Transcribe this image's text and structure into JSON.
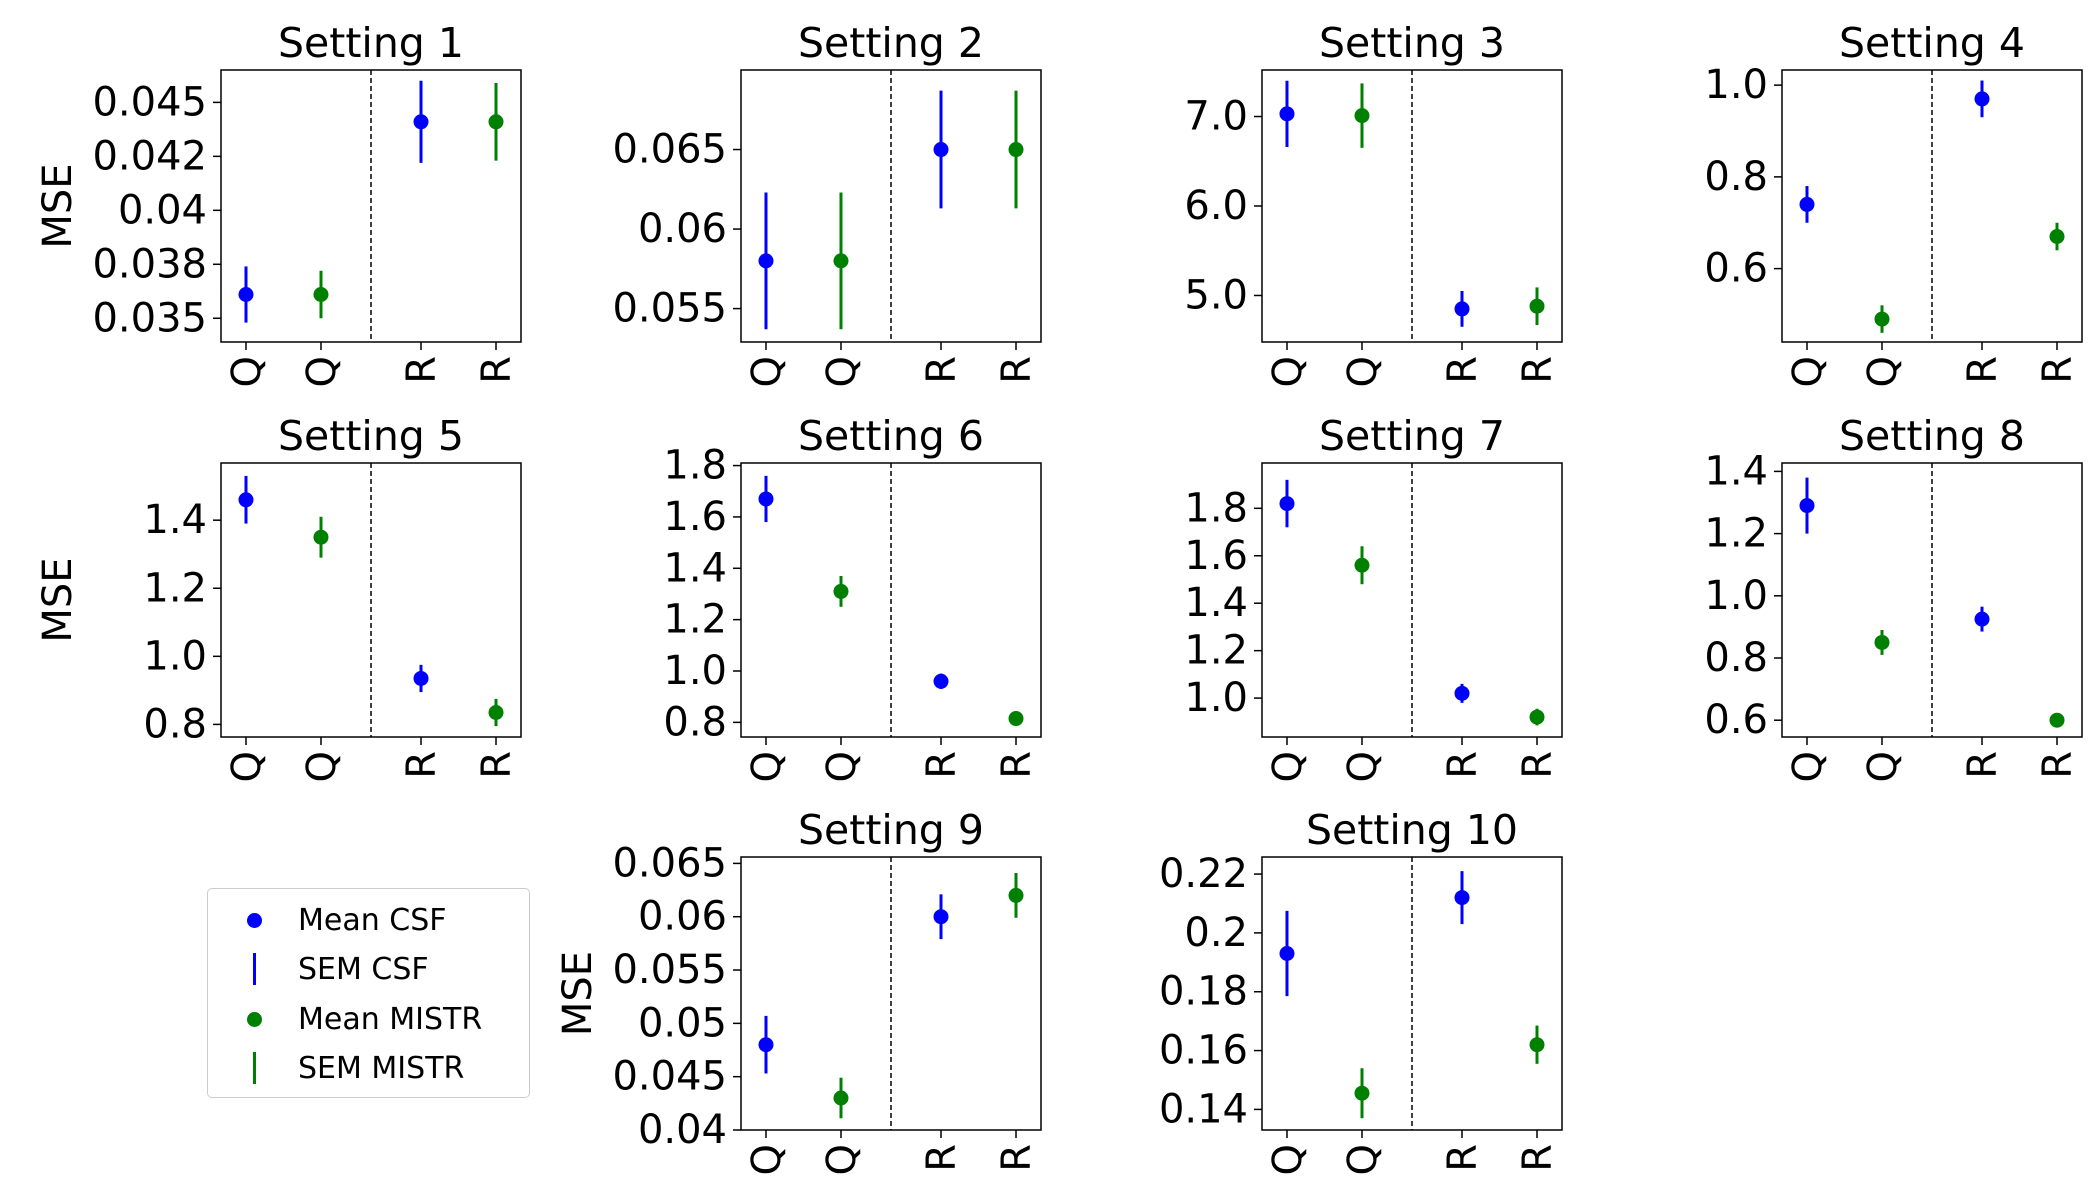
{
  "colors": {
    "csf": "#0000ff",
    "mistr": "#008000"
  },
  "legend": {
    "mean_csf": "Mean CSF",
    "sem_csf": "SEM CSF",
    "mean_mistr": "Mean MISTR",
    "sem_mistr": "SEM MISTR"
  },
  "chart_data": [
    {
      "type": "scatter",
      "title": "Setting 1",
      "ylabel": "MSE",
      "categories": [
        "Q",
        "Q",
        "R",
        "R"
      ],
      "ylim": [
        0.0339,
        0.0465
      ],
      "yticks": [
        0.035,
        0.0375,
        0.04,
        0.0425,
        0.045
      ],
      "yticklabels": [
        "0.035",
        "0.038",
        "0.04",
        "0.042",
        "0.045"
      ],
      "points": [
        {
          "series": "CSF",
          "category_index": 0,
          "mean": 0.0361,
          "sem": 0.0013
        },
        {
          "series": "MISTR",
          "category_index": 1,
          "mean": 0.0361,
          "sem": 0.0011
        },
        {
          "series": "CSF",
          "category_index": 2,
          "mean": 0.0441,
          "sem": 0.0019
        },
        {
          "series": "MISTR",
          "category_index": 3,
          "mean": 0.0441,
          "sem": 0.0018
        }
      ]
    },
    {
      "type": "scatter",
      "title": "Setting 2",
      "ylabel": "",
      "categories": [
        "Q",
        "Q",
        "R",
        "R"
      ],
      "ylim": [
        0.0529,
        0.07
      ],
      "yticks": [
        0.055,
        0.06,
        0.065
      ],
      "yticklabels": [
        "0.055",
        "0.06",
        "0.065"
      ],
      "points": [
        {
          "series": "CSF",
          "category_index": 0,
          "mean": 0.058,
          "sem": 0.0043
        },
        {
          "series": "MISTR",
          "category_index": 1,
          "mean": 0.058,
          "sem": 0.0043
        },
        {
          "series": "CSF",
          "category_index": 2,
          "mean": 0.065,
          "sem": 0.0037
        },
        {
          "series": "MISTR",
          "category_index": 3,
          "mean": 0.065,
          "sem": 0.0037
        }
      ]
    },
    {
      "type": "scatter",
      "title": "Setting 3",
      "ylabel": "",
      "categories": [
        "Q",
        "Q",
        "R",
        "R"
      ],
      "ylim": [
        4.48,
        7.52
      ],
      "yticks": [
        5.0,
        6.0,
        7.0
      ],
      "yticklabels": [
        "5.0",
        "6.0",
        "7.0"
      ],
      "points": [
        {
          "series": "CSF",
          "category_index": 0,
          "mean": 7.03,
          "sem": 0.37
        },
        {
          "series": "MISTR",
          "category_index": 1,
          "mean": 7.01,
          "sem": 0.36
        },
        {
          "series": "CSF",
          "category_index": 2,
          "mean": 4.85,
          "sem": 0.2
        },
        {
          "series": "MISTR",
          "category_index": 3,
          "mean": 4.88,
          "sem": 0.21
        }
      ]
    },
    {
      "type": "scatter",
      "title": "Setting 4",
      "ylabel": "",
      "categories": [
        "Q",
        "Q",
        "R",
        "R"
      ],
      "ylim": [
        0.44,
        1.033
      ],
      "yticks": [
        0.6,
        0.8,
        1.0
      ],
      "yticklabels": [
        "0.6",
        "0.8",
        "1.0"
      ],
      "points": [
        {
          "series": "CSF",
          "category_index": 0,
          "mean": 0.74,
          "sem": 0.04
        },
        {
          "series": "MISTR",
          "category_index": 1,
          "mean": 0.49,
          "sem": 0.03
        },
        {
          "series": "CSF",
          "category_index": 2,
          "mean": 0.97,
          "sem": 0.04
        },
        {
          "series": "MISTR",
          "category_index": 3,
          "mean": 0.67,
          "sem": 0.03
        }
      ]
    },
    {
      "type": "scatter",
      "title": "Setting 5",
      "ylabel": "MSE",
      "categories": [
        "Q",
        "Q",
        "R",
        "R"
      ],
      "ylim": [
        0.763,
        1.568
      ],
      "yticks": [
        0.8,
        1.0,
        1.2,
        1.4
      ],
      "yticklabels": [
        "0.8",
        "1.0",
        "1.2",
        "1.4"
      ],
      "points": [
        {
          "series": "CSF",
          "category_index": 0,
          "mean": 1.46,
          "sem": 0.07
        },
        {
          "series": "MISTR",
          "category_index": 1,
          "mean": 1.35,
          "sem": 0.06
        },
        {
          "series": "CSF",
          "category_index": 2,
          "mean": 0.935,
          "sem": 0.04
        },
        {
          "series": "MISTR",
          "category_index": 3,
          "mean": 0.835,
          "sem": 0.04
        }
      ]
    },
    {
      "type": "scatter",
      "title": "Setting 6",
      "ylabel": "",
      "categories": [
        "Q",
        "Q",
        "R",
        "R"
      ],
      "ylim": [
        0.743,
        1.81
      ],
      "yticks": [
        0.8,
        1.0,
        1.2,
        1.4,
        1.6,
        1.8
      ],
      "yticklabels": [
        "0.8",
        "1.0",
        "1.2",
        "1.4",
        "1.6",
        "1.8"
      ],
      "points": [
        {
          "series": "CSF",
          "category_index": 0,
          "mean": 1.67,
          "sem": 0.09
        },
        {
          "series": "MISTR",
          "category_index": 1,
          "mean": 1.31,
          "sem": 0.06
        },
        {
          "series": "CSF",
          "category_index": 2,
          "mean": 0.96,
          "sem": 0.03
        },
        {
          "series": "MISTR",
          "category_index": 3,
          "mean": 0.815,
          "sem": 0.025
        }
      ]
    },
    {
      "type": "scatter",
      "title": "Setting 7",
      "ylabel": "",
      "categories": [
        "Q",
        "Q",
        "R",
        "R"
      ],
      "ylim": [
        0.836,
        1.991
      ],
      "yticks": [
        1.0,
        1.2,
        1.4,
        1.6,
        1.8
      ],
      "yticklabels": [
        "1.0",
        "1.2",
        "1.4",
        "1.6",
        "1.8"
      ],
      "points": [
        {
          "series": "CSF",
          "category_index": 0,
          "mean": 1.82,
          "sem": 0.1
        },
        {
          "series": "MISTR",
          "category_index": 1,
          "mean": 1.56,
          "sem": 0.08
        },
        {
          "series": "CSF",
          "category_index": 2,
          "mean": 1.02,
          "sem": 0.04
        },
        {
          "series": "MISTR",
          "category_index": 3,
          "mean": 0.92,
          "sem": 0.035
        }
      ]
    },
    {
      "type": "scatter",
      "title": "Setting 8",
      "ylabel": "",
      "categories": [
        "Q",
        "Q",
        "R",
        "R"
      ],
      "ylim": [
        0.546,
        1.427
      ],
      "yticks": [
        0.6,
        0.8,
        1.0,
        1.2,
        1.4
      ],
      "yticklabels": [
        "0.6",
        "0.8",
        "1.0",
        "1.2",
        "1.4"
      ],
      "points": [
        {
          "series": "CSF",
          "category_index": 0,
          "mean": 1.29,
          "sem": 0.09
        },
        {
          "series": "MISTR",
          "category_index": 1,
          "mean": 0.85,
          "sem": 0.04
        },
        {
          "series": "CSF",
          "category_index": 2,
          "mean": 0.925,
          "sem": 0.04
        },
        {
          "series": "MISTR",
          "category_index": 3,
          "mean": 0.6,
          "sem": 0.015
        }
      ]
    },
    {
      "type": "scatter",
      "title": "Setting 9",
      "ylabel": "MSE",
      "categories": [
        "Q",
        "Q",
        "R",
        "R"
      ],
      "ylim": [
        0.04,
        0.0656
      ],
      "yticks": [
        0.04,
        0.045,
        0.05,
        0.055,
        0.06,
        0.065
      ],
      "yticklabels": [
        "0.04",
        "0.045",
        "0.05",
        "0.055",
        "0.06",
        "0.065"
      ],
      "points": [
        {
          "series": "CSF",
          "category_index": 0,
          "mean": 0.048,
          "sem": 0.0027
        },
        {
          "series": "MISTR",
          "category_index": 1,
          "mean": 0.043,
          "sem": 0.0019
        },
        {
          "series": "CSF",
          "category_index": 2,
          "mean": 0.06,
          "sem": 0.0021
        },
        {
          "series": "MISTR",
          "category_index": 3,
          "mean": 0.062,
          "sem": 0.0021
        }
      ]
    },
    {
      "type": "scatter",
      "title": "Setting 10",
      "ylabel": "",
      "categories": [
        "Q",
        "Q",
        "R",
        "R"
      ],
      "ylim": [
        0.133,
        0.2258
      ],
      "yticks": [
        0.14,
        0.16,
        0.18,
        0.2,
        0.22
      ],
      "yticklabels": [
        "0.14",
        "0.16",
        "0.18",
        "0.2",
        "0.22"
      ],
      "points": [
        {
          "series": "CSF",
          "category_index": 0,
          "mean": 0.193,
          "sem": 0.0145
        },
        {
          "series": "MISTR",
          "category_index": 1,
          "mean": 0.1455,
          "sem": 0.0085
        },
        {
          "series": "CSF",
          "category_index": 2,
          "mean": 0.212,
          "sem": 0.009
        },
        {
          "series": "MISTR",
          "category_index": 3,
          "mean": 0.162,
          "sem": 0.0065
        }
      ]
    }
  ]
}
